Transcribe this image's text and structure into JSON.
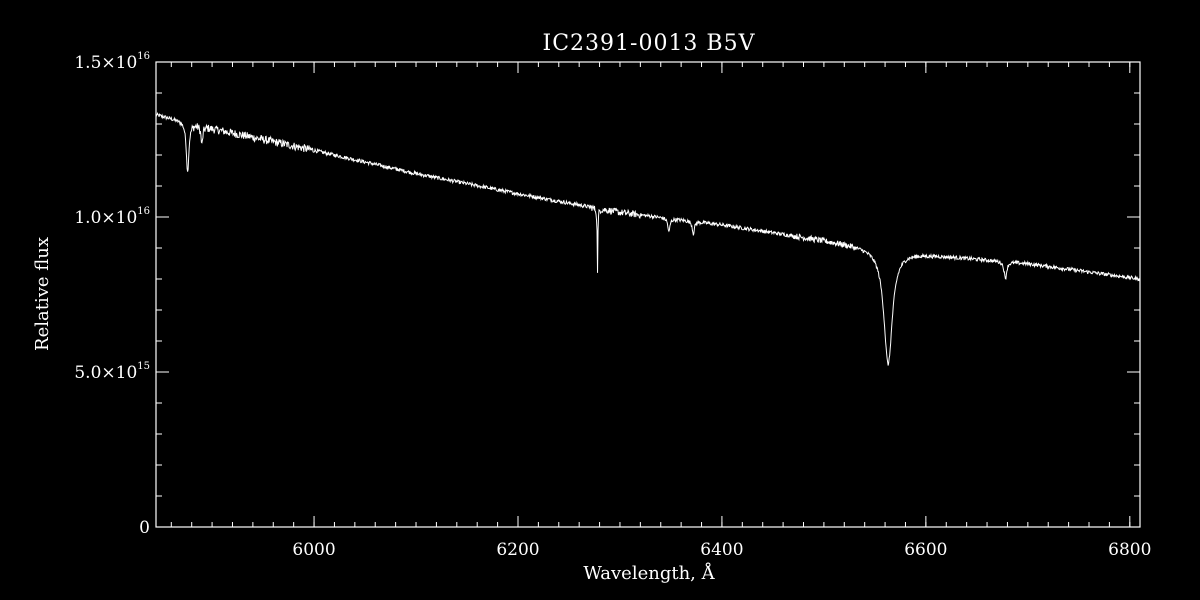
{
  "chart_data": {
    "type": "line",
    "title": "IC2391-0013  B5V",
    "xlabel": "Wavelength, Å",
    "ylabel": "Relative flux",
    "xlim": [
      5845,
      6810
    ],
    "ylim": [
      0,
      1.5e+16
    ],
    "x_ticks": [
      {
        "value": 6000,
        "label": "6000"
      },
      {
        "value": 6200,
        "label": "6200"
      },
      {
        "value": 6400,
        "label": "6400"
      },
      {
        "value": 6600,
        "label": "6600"
      },
      {
        "value": 6800,
        "label": "6800"
      }
    ],
    "y_ticks": [
      {
        "value": 0,
        "mant": "0",
        "exp": ""
      },
      {
        "value": 5000000000000000.0,
        "mant": "5.0×10",
        "exp": "15"
      },
      {
        "value": 1e+16,
        "mant": "1.0×10",
        "exp": "16"
      },
      {
        "value": 1.5e+16,
        "mant": "1.5×10",
        "exp": "16"
      }
    ],
    "x_minor_step": 20,
    "y_minor_step": 1000000000000000.0,
    "grid": false,
    "line_color": "#ffffff",
    "background_color": "#000000",
    "series": [
      {
        "continuum": [
          [
            5845,
            1.33e+16
          ],
          [
            5900,
            1.285e+16
          ],
          [
            6000,
            1.215e+16
          ],
          [
            6100,
            1.14e+16
          ],
          [
            6200,
            1.075e+16
          ],
          [
            6300,
            1.015e+16
          ],
          [
            6400,
            9750000000000000.0
          ],
          [
            6500,
            9250000000000000.0
          ],
          [
            6540,
            9050000000000000.0
          ],
          [
            6600,
            8800000000000000.0
          ],
          [
            6700,
            8500000000000000.0
          ],
          [
            6810,
            8000000000000000.0
          ]
        ],
        "absorption_lines": [
          {
            "center": 5876,
            "depth": 1600000000000000.0,
            "width": 1.5
          },
          {
            "center": 5890,
            "depth": 600000000000000.0,
            "width": 1.0
          },
          {
            "center": 6278,
            "depth": 2000000000000000.0,
            "width": 0.4
          },
          {
            "center": 6348,
            "depth": 450000000000000.0,
            "width": 1.2
          },
          {
            "center": 6372,
            "depth": 400000000000000.0,
            "width": 1.2
          },
          {
            "center": 6563,
            "depth": 3700000000000000.0,
            "width": 5.0
          },
          {
            "center": 6678,
            "depth": 550000000000000.0,
            "width": 1.5
          }
        ],
        "noise_amplitude": 60000000000000.0
      }
    ]
  }
}
